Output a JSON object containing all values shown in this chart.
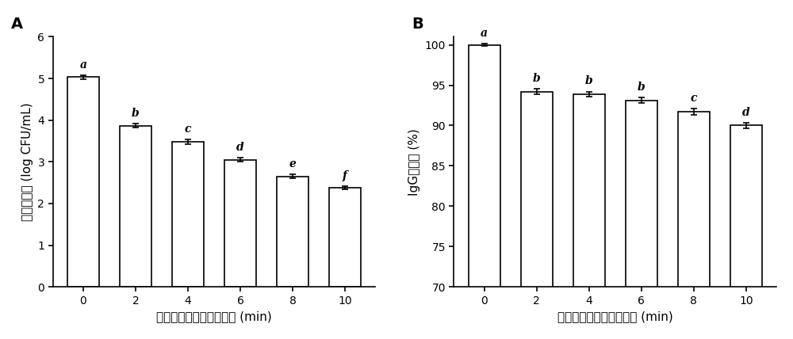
{
  "panel_A": {
    "categories": [
      0,
      2,
      4,
      6,
      8,
      10
    ],
    "values": [
      5.03,
      3.87,
      3.48,
      3.05,
      2.65,
      2.38
    ],
    "errors": [
      0.05,
      0.05,
      0.05,
      0.05,
      0.05,
      0.04
    ],
    "letters": [
      "a",
      "b",
      "c",
      "d",
      "e",
      "f"
    ],
    "ylabel": "微生物数量 (log CFU/mL)",
    "xlabel": "高功率脉冲微波杆菌时间 (min)",
    "ylim": [
      0,
      6
    ],
    "yticks": [
      0,
      1,
      2,
      3,
      4,
      5,
      6
    ],
    "panel_label": "A"
  },
  "panel_B": {
    "categories": [
      0,
      2,
      4,
      6,
      8,
      10
    ],
    "values": [
      100.0,
      94.2,
      93.9,
      93.1,
      91.7,
      90.0
    ],
    "errors": [
      0.15,
      0.35,
      0.3,
      0.35,
      0.4,
      0.3
    ],
    "letters": [
      "a",
      "b",
      "b",
      "b",
      "c",
      "d"
    ],
    "ylabel": "IgG保留率 (%)",
    "xlabel": "高功率脉冲微波杆菌时间 (min)",
    "ylim": [
      70,
      101
    ],
    "yticks": [
      70,
      75,
      80,
      85,
      90,
      95,
      100
    ],
    "panel_label": "B"
  },
  "bar_color": "#ffffff",
  "bar_edgecolor": "#000000",
  "bar_linewidth": 1.2,
  "bar_width": 0.6,
  "figsize": [
    10.0,
    4.28
  ],
  "dpi": 100,
  "font_size_labels": 11,
  "font_size_ticks": 10,
  "font_size_panel": 14,
  "font_size_letters": 10,
  "capsize": 3,
  "elinewidth": 1.2,
  "ecapthick": 1.2
}
